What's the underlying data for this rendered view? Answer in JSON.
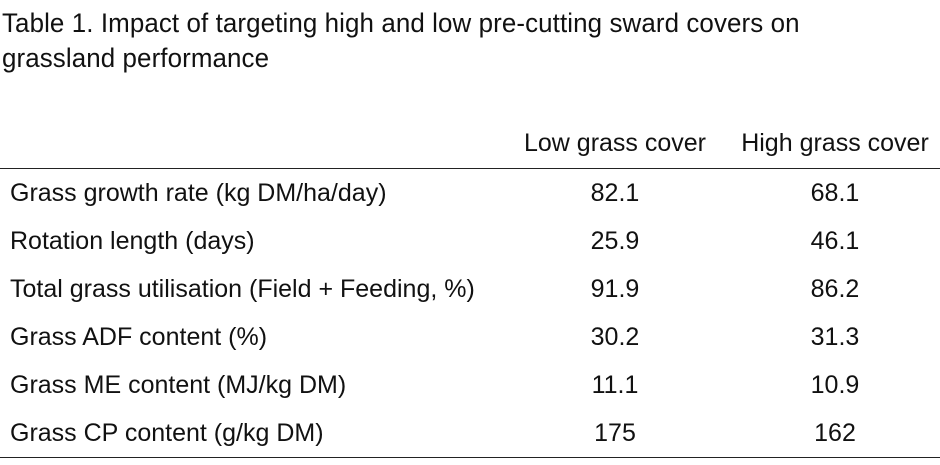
{
  "caption": "Table 1. Impact of targeting high and low pre-cutting sward covers on grassland performance",
  "table": {
    "headers": [
      "",
      "Low grass cover",
      "High grass cover"
    ],
    "rows": [
      [
        "Grass growth rate (kg DM/ha/day)",
        "82.1",
        "68.1"
      ],
      [
        "Rotation length (days)",
        "25.9",
        "46.1"
      ],
      [
        "Total grass utilisation (Field + Feeding, %)",
        "91.9",
        "86.2"
      ],
      [
        "Grass ADF content (%)",
        "30.2",
        "31.3"
      ],
      [
        "Grass ME content (MJ/kg DM)",
        "11.1",
        "10.9"
      ],
      [
        "Grass CP content (g/kg DM)",
        "175",
        "162"
      ]
    ]
  }
}
